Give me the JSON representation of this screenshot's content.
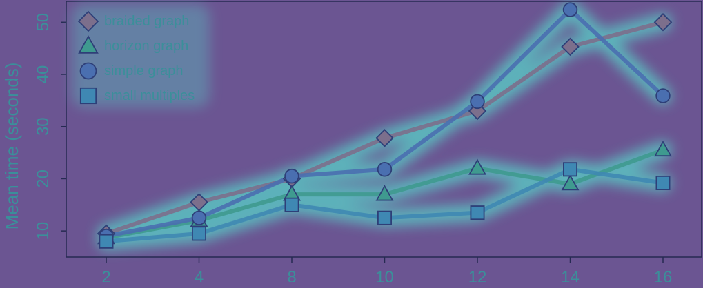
{
  "chart_data": {
    "type": "line",
    "ylabel": "Mean time (seconds)",
    "xlabel": "",
    "categories": [
      "2",
      "4",
      "8",
      "10",
      "12",
      "14",
      "16"
    ],
    "yticks": [
      10,
      20,
      30,
      40,
      50
    ],
    "ylim": [
      5,
      54
    ],
    "grid": false,
    "legend_position": "top-left",
    "series": [
      {
        "name": "braided graph",
        "marker": "diamond",
        "color": "#7c6f8c",
        "values": [
          9.5,
          15.5,
          20.0,
          27.8,
          33.0,
          45.3,
          50.0
        ]
      },
      {
        "name": "horizon graph",
        "marker": "triangle",
        "color": "#3f9a8f",
        "values": [
          8.7,
          12.0,
          17.0,
          17.0,
          22.0,
          19.0,
          25.5
        ]
      },
      {
        "name": "simple graph",
        "marker": "circle",
        "color": "#4a6fb0",
        "values": [
          9.0,
          12.5,
          20.5,
          21.8,
          34.8,
          52.4,
          35.9
        ]
      },
      {
        "name": "small multiples",
        "marker": "square",
        "color": "#3f88b3",
        "values": [
          8.0,
          9.5,
          15.0,
          12.5,
          13.5,
          21.8,
          19.2
        ]
      }
    ]
  },
  "colors": {
    "background": "#6b5592",
    "text": "#3b8f9a",
    "glow": "#58d0c8",
    "axis": "#262a52",
    "marker_stroke": "#2e3f78"
  }
}
